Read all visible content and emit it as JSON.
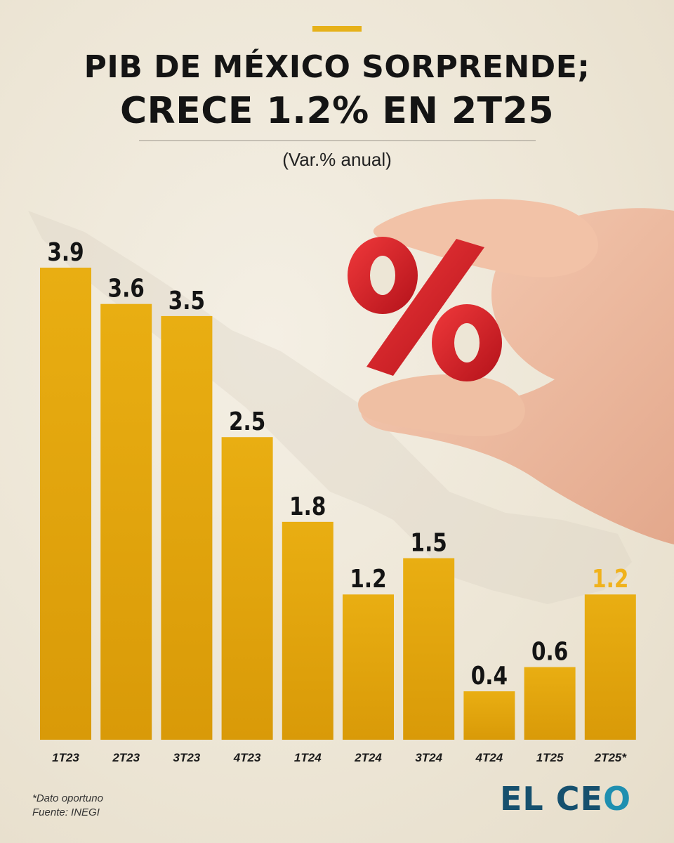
{
  "header": {
    "title_line1": "PIB DE MÉXICO SORPRENDE;",
    "title_line2": "CRECE 1.2% EN 2T25",
    "subtitle": "(Var.% anual)"
  },
  "footer": {
    "note1": "*Dato oportuno",
    "note2": "Fuente: INEGI",
    "logo_part1": "EL CE",
    "logo_part2": "O"
  },
  "image_content": {
    "percent_symbol": "%"
  },
  "colors": {
    "bar": "#e9ae12",
    "bar_dark": "#d99a08",
    "highlight_label": "#f0b21c",
    "label": "#141414",
    "accent": "#e6b119",
    "logo": "#16506e"
  },
  "chart_data": {
    "type": "bar",
    "categories": [
      "1T23",
      "2T23",
      "3T23",
      "4T23",
      "1T24",
      "2T24",
      "3T24",
      "4T24",
      "1T25",
      "2T25*"
    ],
    "values": [
      3.9,
      3.6,
      3.5,
      2.5,
      1.8,
      1.2,
      1.5,
      0.4,
      0.6,
      1.2
    ],
    "value_labels": [
      "3.9",
      "3.6",
      "3.5",
      "2.5",
      "1.8",
      "1.2",
      "1.5",
      "0.4",
      "0.6",
      "1.2"
    ],
    "highlight_index": 9,
    "title": "PIB DE MÉXICO SORPRENDE; CRECE 1.2% EN 2T25",
    "ylabel": "",
    "xlabel": "",
    "ylim": [
      0,
      3.9
    ],
    "grid": false
  }
}
